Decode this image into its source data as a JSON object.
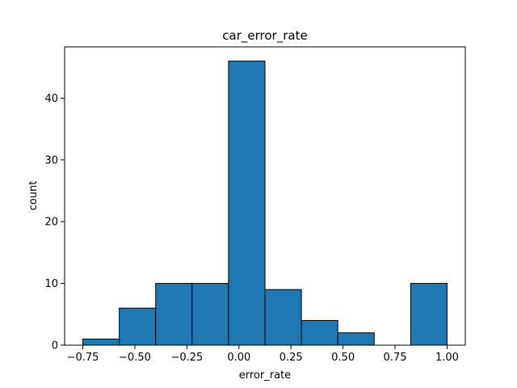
{
  "chart_data": {
    "type": "bar",
    "title": "car_error_rate",
    "xlabel": "error_rate",
    "ylabel": "count",
    "xlim": [
      -0.8375,
      1.0875
    ],
    "ylim": [
      0,
      48.3
    ],
    "xticks": [
      -0.75,
      -0.5,
      -0.25,
      0.0,
      0.25,
      0.5,
      0.75,
      1.0
    ],
    "xtick_labels": [
      "−0.75",
      "−0.50",
      "−0.25",
      "0.00",
      "0.25",
      "0.50",
      "0.75",
      "1.00"
    ],
    "yticks": [
      0,
      10,
      20,
      30,
      40
    ],
    "ytick_labels": [
      "0",
      "10",
      "20",
      "30",
      "40"
    ],
    "bins": [
      {
        "x0": -0.75,
        "x1": -0.575,
        "count": 1
      },
      {
        "x0": -0.575,
        "x1": -0.4,
        "count": 6
      },
      {
        "x0": -0.4,
        "x1": -0.225,
        "count": 10
      },
      {
        "x0": -0.225,
        "x1": -0.05,
        "count": 10
      },
      {
        "x0": -0.05,
        "x1": 0.125,
        "count": 46
      },
      {
        "x0": 0.125,
        "x1": 0.3,
        "count": 9
      },
      {
        "x0": 0.3,
        "x1": 0.475,
        "count": 4
      },
      {
        "x0": 0.475,
        "x1": 0.65,
        "count": 2
      },
      {
        "x0": 0.65,
        "x1": 0.825,
        "count": 0
      },
      {
        "x0": 0.825,
        "x1": 1.0,
        "count": 10
      }
    ],
    "grid": false,
    "legend": "none",
    "colors": {
      "bar_fill": "#1f77b4",
      "bar_edge": "#000000"
    }
  }
}
